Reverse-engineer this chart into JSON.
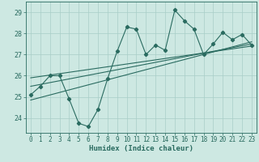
{
  "xlabel": "Humidex (Indice chaleur)",
  "xlim": [
    -0.5,
    23.5
  ],
  "ylim": [
    23.3,
    29.5
  ],
  "xticks": [
    0,
    1,
    2,
    3,
    4,
    5,
    6,
    7,
    8,
    9,
    10,
    11,
    12,
    13,
    14,
    15,
    16,
    17,
    18,
    19,
    20,
    21,
    22,
    23
  ],
  "yticks": [
    24,
    25,
    26,
    27,
    28,
    29
  ],
  "bg_color": "#cde8e2",
  "grid_color": "#a8cec7",
  "line_color": "#2a6b60",
  "main_line_x": [
    0,
    1,
    2,
    3,
    4,
    5,
    6,
    7,
    8,
    9,
    10,
    11,
    12,
    13,
    14,
    15,
    16,
    17,
    18,
    19,
    20,
    21,
    22,
    23
  ],
  "main_line_y": [
    25.1,
    25.5,
    26.0,
    26.0,
    24.9,
    23.75,
    23.6,
    24.4,
    25.85,
    27.15,
    28.3,
    28.2,
    27.0,
    27.45,
    27.2,
    29.1,
    28.6,
    28.2,
    27.0,
    27.5,
    28.05,
    27.7,
    27.95,
    27.45
  ],
  "trend1_x": [
    0,
    23
  ],
  "trend1_y": [
    25.9,
    27.4
  ],
  "trend2_x": [
    0,
    23
  ],
  "trend2_y": [
    25.5,
    27.5
  ],
  "trend3_x": [
    0,
    23
  ],
  "trend3_y": [
    24.85,
    27.6
  ],
  "marker": "D",
  "markersize": 2.2,
  "linewidth": 0.8
}
